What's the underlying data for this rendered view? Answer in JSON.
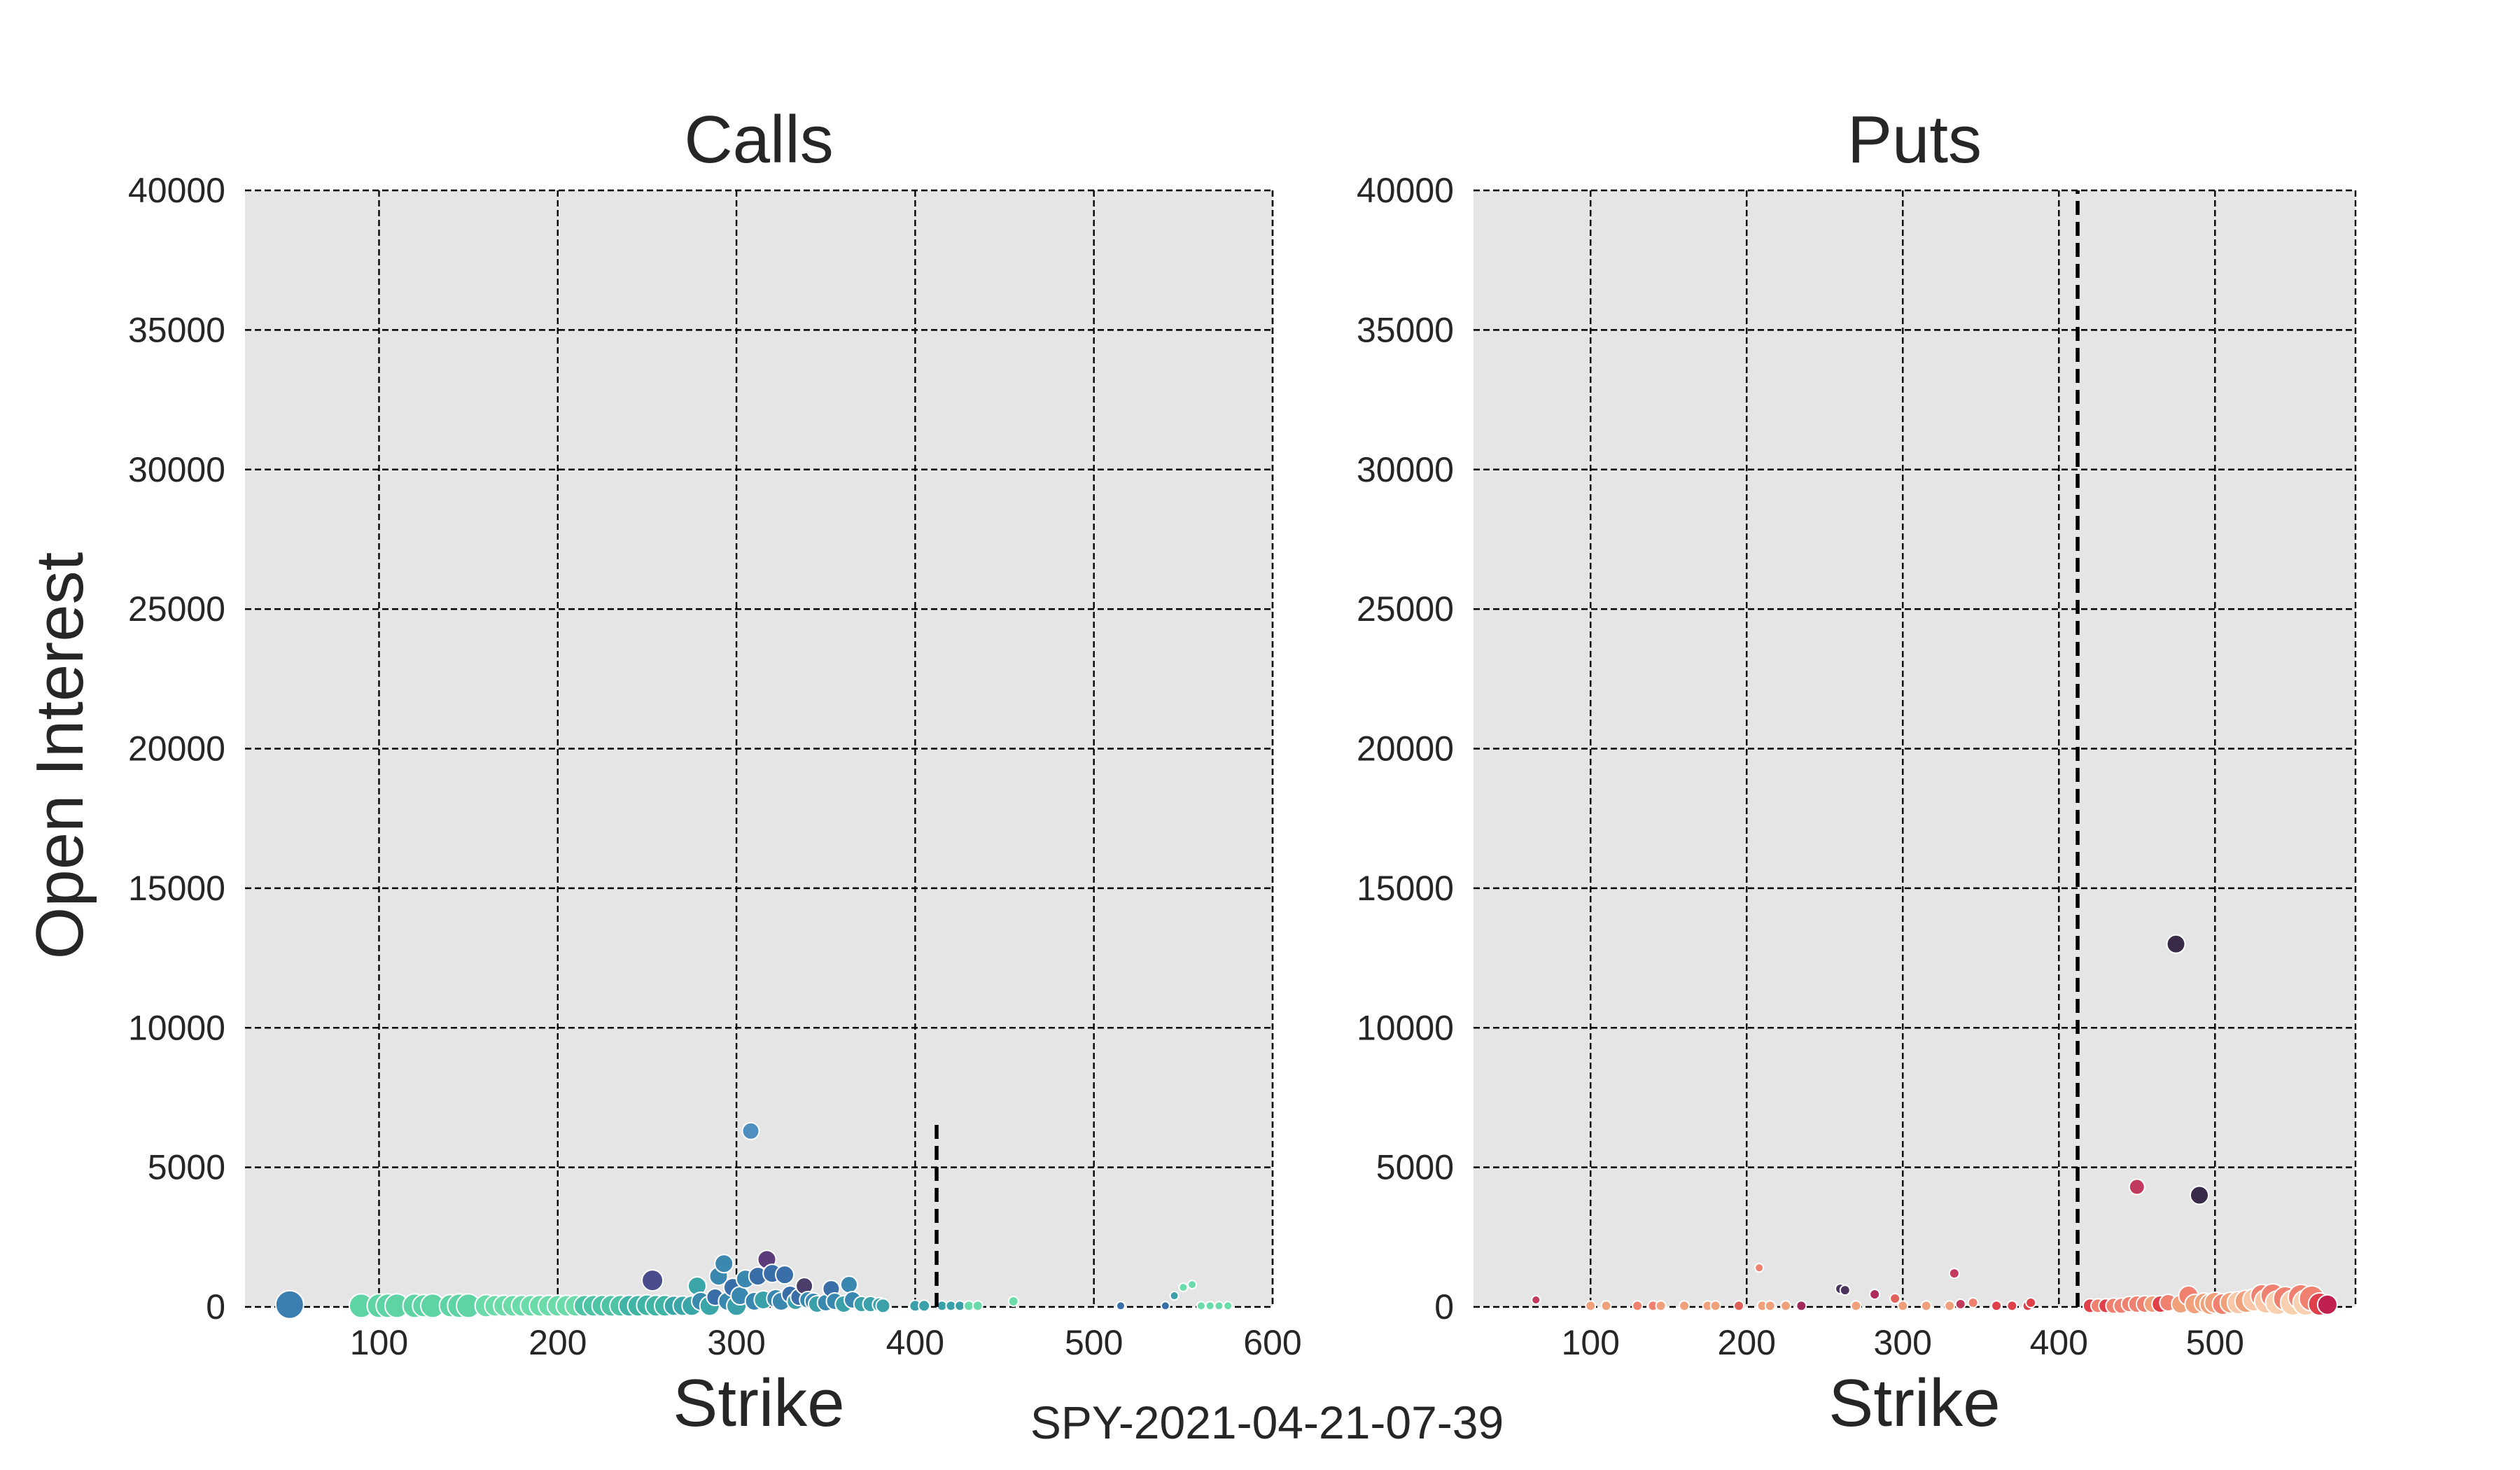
{
  "footer_label": "SPY-2021-04-21-07-39",
  "chart_data": [
    {
      "type": "scatter",
      "title": "Calls",
      "xlabel": "Strike",
      "ylabel": "Open Interest",
      "xlim": [
        25,
        600
      ],
      "ylim": [
        0,
        40000
      ],
      "xticks": [
        "100",
        "200",
        "300",
        "400",
        "500",
        "600"
      ],
      "yticks": [
        "0",
        "5000",
        "10000",
        "15000",
        "20000",
        "25000",
        "30000",
        "35000",
        "40000"
      ],
      "grid": true,
      "reference_line": {
        "x": 412,
        "y_top": 6700
      },
      "points": [
        {
          "x": 50,
          "y": 80,
          "s": 20,
          "c": "#3b7fb0"
        },
        {
          "x": 90,
          "y": 40,
          "s": 17,
          "c": "#5ed4a4"
        },
        {
          "x": 100,
          "y": 40,
          "s": 17,
          "c": "#5ed4a4"
        },
        {
          "x": 105,
          "y": 40,
          "s": 17,
          "c": "#5ed4a4"
        },
        {
          "x": 110,
          "y": 40,
          "s": 17,
          "c": "#5ed4a4"
        },
        {
          "x": 120,
          "y": 40,
          "s": 17,
          "c": "#5ed4a4"
        },
        {
          "x": 125,
          "y": 40,
          "s": 16,
          "c": "#5ed4a4"
        },
        {
          "x": 130,
          "y": 40,
          "s": 17,
          "c": "#5ed4a4"
        },
        {
          "x": 140,
          "y": 40,
          "s": 16,
          "c": "#5ed4a4"
        },
        {
          "x": 145,
          "y": 40,
          "s": 17,
          "c": "#5ed4a4"
        },
        {
          "x": 150,
          "y": 40,
          "s": 17,
          "c": "#5ed4a4"
        },
        {
          "x": 160,
          "y": 40,
          "s": 16,
          "c": "#6bdba9"
        },
        {
          "x": 165,
          "y": 40,
          "s": 15,
          "c": "#6bdba9"
        },
        {
          "x": 170,
          "y": 40,
          "s": 15,
          "c": "#6bdba9"
        },
        {
          "x": 175,
          "y": 40,
          "s": 15,
          "c": "#6bdba9"
        },
        {
          "x": 180,
          "y": 40,
          "s": 15,
          "c": "#6bdba9"
        },
        {
          "x": 185,
          "y": 40,
          "s": 15,
          "c": "#6bdba9"
        },
        {
          "x": 190,
          "y": 40,
          "s": 15,
          "c": "#6bdba9"
        },
        {
          "x": 195,
          "y": 40,
          "s": 15,
          "c": "#6bdba9"
        },
        {
          "x": 200,
          "y": 40,
          "s": 15,
          "c": "#6bdba9"
        },
        {
          "x": 205,
          "y": 40,
          "s": 15,
          "c": "#6bdba9"
        },
        {
          "x": 210,
          "y": 40,
          "s": 15,
          "c": "#6bdba9"
        },
        {
          "x": 215,
          "y": 40,
          "s": 15,
          "c": "#4fc3a6"
        },
        {
          "x": 220,
          "y": 40,
          "s": 15,
          "c": "#4fc3a6"
        },
        {
          "x": 225,
          "y": 40,
          "s": 15,
          "c": "#4fc3a6"
        },
        {
          "x": 230,
          "y": 40,
          "s": 15,
          "c": "#4fc3a6"
        },
        {
          "x": 235,
          "y": 40,
          "s": 15,
          "c": "#4fc3a6"
        },
        {
          "x": 240,
          "y": 40,
          "s": 15,
          "c": "#40b5a6"
        },
        {
          "x": 245,
          "y": 40,
          "s": 15,
          "c": "#40b5a6"
        },
        {
          "x": 250,
          "y": 60,
          "s": 15,
          "c": "#40b5a6"
        },
        {
          "x": 253,
          "y": 950,
          "s": 15,
          "c": "#4a4d8c"
        },
        {
          "x": 255,
          "y": 40,
          "s": 15,
          "c": "#40b5a6"
        },
        {
          "x": 260,
          "y": 40,
          "s": 15,
          "c": "#40b5a6"
        },
        {
          "x": 265,
          "y": 40,
          "s": 14,
          "c": "#3aa6a8"
        },
        {
          "x": 270,
          "y": 40,
          "s": 14,
          "c": "#3aa6a8"
        },
        {
          "x": 275,
          "y": 40,
          "s": 14,
          "c": "#3aa6a8"
        },
        {
          "x": 278,
          "y": 750,
          "s": 13,
          "c": "#3aa6a8"
        },
        {
          "x": 280,
          "y": 200,
          "s": 13,
          "c": "#3a8ab0"
        },
        {
          "x": 285,
          "y": 40,
          "s": 14,
          "c": "#3aa6a8"
        },
        {
          "x": 288,
          "y": 350,
          "s": 12,
          "c": "#3a6ea8"
        },
        {
          "x": 290,
          "y": 1100,
          "s": 13,
          "c": "#3a88b0"
        },
        {
          "x": 293,
          "y": 1550,
          "s": 13,
          "c": "#3a88b0"
        },
        {
          "x": 295,
          "y": 200,
          "s": 13,
          "c": "#3a88b0"
        },
        {
          "x": 298,
          "y": 700,
          "s": 13,
          "c": "#3a6ea8"
        },
        {
          "x": 300,
          "y": 40,
          "s": 14,
          "c": "#3aa0aa"
        },
        {
          "x": 302,
          "y": 400,
          "s": 13,
          "c": "#3a88b0"
        },
        {
          "x": 305,
          "y": 1000,
          "s": 13,
          "c": "#3a88b0"
        },
        {
          "x": 308,
          "y": 6300,
          "s": 12,
          "c": "#4e8fc0"
        },
        {
          "x": 310,
          "y": 200,
          "s": 13,
          "c": "#3a88b0"
        },
        {
          "x": 312,
          "y": 1100,
          "s": 13,
          "c": "#3a6ea8"
        },
        {
          "x": 315,
          "y": 250,
          "s": 13,
          "c": "#3aa0aa"
        },
        {
          "x": 317,
          "y": 1700,
          "s": 13,
          "c": "#5a3d7a"
        },
        {
          "x": 320,
          "y": 1200,
          "s": 13,
          "c": "#3a6ea8"
        },
        {
          "x": 322,
          "y": 300,
          "s": 13,
          "c": "#3a88b0"
        },
        {
          "x": 325,
          "y": 200,
          "s": 13,
          "c": "#3a88b0"
        },
        {
          "x": 327,
          "y": 1150,
          "s": 13,
          "c": "#3a6ea8"
        },
        {
          "x": 330,
          "y": 450,
          "s": 12,
          "c": "#3a6ea8"
        },
        {
          "x": 333,
          "y": 200,
          "s": 12,
          "c": "#3aa0aa"
        },
        {
          "x": 335,
          "y": 350,
          "s": 12,
          "c": "#3a6ea8"
        },
        {
          "x": 338,
          "y": 750,
          "s": 12,
          "c": "#4a3d6a"
        },
        {
          "x": 340,
          "y": 250,
          "s": 12,
          "c": "#3a88b0"
        },
        {
          "x": 343,
          "y": 200,
          "s": 12,
          "c": "#3a88b0"
        },
        {
          "x": 345,
          "y": 100,
          "s": 12,
          "c": "#3aa0aa"
        },
        {
          "x": 350,
          "y": 150,
          "s": 12,
          "c": "#3a88b0"
        },
        {
          "x": 353,
          "y": 650,
          "s": 12,
          "c": "#3a6ea8"
        },
        {
          "x": 355,
          "y": 200,
          "s": 12,
          "c": "#3a88b0"
        },
        {
          "x": 360,
          "y": 100,
          "s": 12,
          "c": "#3aa0aa"
        },
        {
          "x": 363,
          "y": 800,
          "s": 12,
          "c": "#3a88b0"
        },
        {
          "x": 365,
          "y": 250,
          "s": 12,
          "c": "#3a88b0"
        },
        {
          "x": 370,
          "y": 100,
          "s": 11,
          "c": "#3aa0aa"
        },
        {
          "x": 375,
          "y": 100,
          "s": 11,
          "c": "#3aa0aa"
        },
        {
          "x": 380,
          "y": 80,
          "s": 10,
          "c": "#3aa0aa"
        },
        {
          "x": 382,
          "y": 40,
          "s": 10,
          "c": "#3aa0aa"
        },
        {
          "x": 400,
          "y": 40,
          "s": 8,
          "c": "#3aa0aa"
        },
        {
          "x": 405,
          "y": 40,
          "s": 8,
          "c": "#3aa0aa"
        },
        {
          "x": 415,
          "y": 40,
          "s": 7,
          "c": "#3aa0aa"
        },
        {
          "x": 420,
          "y": 40,
          "s": 7,
          "c": "#3aa0aa"
        },
        {
          "x": 425,
          "y": 40,
          "s": 7,
          "c": "#3aa0aa"
        },
        {
          "x": 430,
          "y": 40,
          "s": 7,
          "c": "#6bdba9"
        },
        {
          "x": 435,
          "y": 40,
          "s": 7,
          "c": "#6bdba9"
        },
        {
          "x": 455,
          "y": 200,
          "s": 7,
          "c": "#6bdba9"
        },
        {
          "x": 515,
          "y": 40,
          "s": 6,
          "c": "#3a6ea8"
        },
        {
          "x": 540,
          "y": 40,
          "s": 6,
          "c": "#3a6ea8"
        },
        {
          "x": 545,
          "y": 400,
          "s": 6,
          "c": "#3aa0aa"
        },
        {
          "x": 550,
          "y": 700,
          "s": 6,
          "c": "#6bdba9"
        },
        {
          "x": 555,
          "y": 800,
          "s": 6,
          "c": "#6bdba9"
        },
        {
          "x": 560,
          "y": 40,
          "s": 6,
          "c": "#6bdba9"
        },
        {
          "x": 565,
          "y": 40,
          "s": 6,
          "c": "#6bdba9"
        },
        {
          "x": 570,
          "y": 40,
          "s": 6,
          "c": "#6bdba9"
        },
        {
          "x": 575,
          "y": 40,
          "s": 6,
          "c": "#6bdba9"
        }
      ]
    },
    {
      "type": "scatter",
      "title": "Puts",
      "xlabel": "Strike",
      "ylabel": "",
      "xlim": [
        25,
        590
      ],
      "ylim": [
        0,
        40000
      ],
      "xticks": [
        "100",
        "200",
        "300",
        "400",
        "500"
      ],
      "yticks": [
        "0",
        "5000",
        "10000",
        "15000",
        "20000",
        "25000",
        "30000",
        "35000",
        "40000"
      ],
      "grid": true,
      "reference_line": {
        "x": 412,
        "y_top": 40000
      },
      "points": [
        {
          "x": 65,
          "y": 250,
          "s": 6,
          "c": "#c23b5e"
        },
        {
          "x": 100,
          "y": 40,
          "s": 7,
          "c": "#f0a07a"
        },
        {
          "x": 110,
          "y": 40,
          "s": 7,
          "c": "#f0a07a"
        },
        {
          "x": 130,
          "y": 40,
          "s": 7,
          "c": "#f08070"
        },
        {
          "x": 140,
          "y": 40,
          "s": 7,
          "c": "#f08070"
        },
        {
          "x": 145,
          "y": 40,
          "s": 7,
          "c": "#f0a07a"
        },
        {
          "x": 160,
          "y": 40,
          "s": 7,
          "c": "#f0a07a"
        },
        {
          "x": 175,
          "y": 40,
          "s": 7,
          "c": "#f0a07a"
        },
        {
          "x": 180,
          "y": 40,
          "s": 7,
          "c": "#f0a07a"
        },
        {
          "x": 195,
          "y": 40,
          "s": 7,
          "c": "#e0605a"
        },
        {
          "x": 208,
          "y": 1400,
          "s": 6,
          "c": "#f08070"
        },
        {
          "x": 210,
          "y": 40,
          "s": 7,
          "c": "#f0a07a"
        },
        {
          "x": 215,
          "y": 40,
          "s": 7,
          "c": "#f0a07a"
        },
        {
          "x": 225,
          "y": 40,
          "s": 7,
          "c": "#f0a07a"
        },
        {
          "x": 235,
          "y": 40,
          "s": 7,
          "c": "#a02a5a"
        },
        {
          "x": 260,
          "y": 650,
          "s": 7,
          "c": "#4a3560"
        },
        {
          "x": 263,
          "y": 600,
          "s": 7,
          "c": "#4a3560"
        },
        {
          "x": 270,
          "y": 40,
          "s": 7,
          "c": "#f0a07a"
        },
        {
          "x": 282,
          "y": 450,
          "s": 7,
          "c": "#b02a5a"
        },
        {
          "x": 295,
          "y": 300,
          "s": 7,
          "c": "#e0605a"
        },
        {
          "x": 300,
          "y": 40,
          "s": 7,
          "c": "#f0a07a"
        },
        {
          "x": 315,
          "y": 40,
          "s": 7,
          "c": "#f0a07a"
        },
        {
          "x": 330,
          "y": 40,
          "s": 7,
          "c": "#f0a07a"
        },
        {
          "x": 333,
          "y": 1200,
          "s": 7,
          "c": "#c23b5e"
        },
        {
          "x": 337,
          "y": 100,
          "s": 7,
          "c": "#c23b5e"
        },
        {
          "x": 345,
          "y": 150,
          "s": 7,
          "c": "#f08070"
        },
        {
          "x": 360,
          "y": 40,
          "s": 7,
          "c": "#e0404a"
        },
        {
          "x": 370,
          "y": 40,
          "s": 7,
          "c": "#e0404a"
        },
        {
          "x": 380,
          "y": 40,
          "s": 7,
          "c": "#e0404a"
        },
        {
          "x": 382,
          "y": 150,
          "s": 7,
          "c": "#e0404a"
        },
        {
          "x": 420,
          "y": 40,
          "s": 10,
          "c": "#e0404a"
        },
        {
          "x": 425,
          "y": 40,
          "s": 10,
          "c": "#f08070"
        },
        {
          "x": 430,
          "y": 40,
          "s": 10,
          "c": "#e0404a"
        },
        {
          "x": 435,
          "y": 40,
          "s": 11,
          "c": "#f08070"
        },
        {
          "x": 440,
          "y": 40,
          "s": 11,
          "c": "#f08070"
        },
        {
          "x": 445,
          "y": 100,
          "s": 11,
          "c": "#f08070"
        },
        {
          "x": 450,
          "y": 4300,
          "s": 11,
          "c": "#c23b5e"
        },
        {
          "x": 450,
          "y": 100,
          "s": 12,
          "c": "#f08070"
        },
        {
          "x": 455,
          "y": 100,
          "s": 12,
          "c": "#f08070"
        },
        {
          "x": 460,
          "y": 100,
          "s": 12,
          "c": "#f0a07a"
        },
        {
          "x": 465,
          "y": 100,
          "s": 12,
          "c": "#e0404a"
        },
        {
          "x": 470,
          "y": 150,
          "s": 12,
          "c": "#f08070"
        },
        {
          "x": 475,
          "y": 13000,
          "s": 13,
          "c": "#3a2a4a"
        },
        {
          "x": 478,
          "y": 100,
          "s": 13,
          "c": "#f0a07a"
        },
        {
          "x": 483,
          "y": 400,
          "s": 14,
          "c": "#f08070"
        },
        {
          "x": 487,
          "y": 100,
          "s": 14,
          "c": "#f0a07a"
        },
        {
          "x": 490,
          "y": 4000,
          "s": 13,
          "c": "#3a2a4a"
        },
        {
          "x": 493,
          "y": 150,
          "s": 14,
          "c": "#f0a07a"
        },
        {
          "x": 497,
          "y": 100,
          "s": 15,
          "c": "#f0a07a"
        },
        {
          "x": 500,
          "y": 150,
          "s": 15,
          "c": "#f0a07a"
        },
        {
          "x": 505,
          "y": 100,
          "s": 15,
          "c": "#f08070"
        },
        {
          "x": 510,
          "y": 150,
          "s": 15,
          "c": "#f0a07a"
        },
        {
          "x": 515,
          "y": 150,
          "s": 16,
          "c": "#f8c8a8"
        },
        {
          "x": 520,
          "y": 200,
          "s": 16,
          "c": "#f0a07a"
        },
        {
          "x": 525,
          "y": 250,
          "s": 16,
          "c": "#f8c8a8"
        },
        {
          "x": 530,
          "y": 400,
          "s": 16,
          "c": "#f08070"
        },
        {
          "x": 533,
          "y": 200,
          "s": 17,
          "c": "#f8c8a8"
        },
        {
          "x": 537,
          "y": 400,
          "s": 17,
          "c": "#f08070"
        },
        {
          "x": 540,
          "y": 150,
          "s": 17,
          "c": "#f8d0b0"
        },
        {
          "x": 545,
          "y": 300,
          "s": 17,
          "c": "#f08070"
        },
        {
          "x": 550,
          "y": 150,
          "s": 18,
          "c": "#f8d0b0"
        },
        {
          "x": 555,
          "y": 350,
          "s": 18,
          "c": "#f08070"
        },
        {
          "x": 558,
          "y": 150,
          "s": 18,
          "c": "#f8d0b0"
        },
        {
          "x": 562,
          "y": 300,
          "s": 18,
          "c": "#f08070"
        },
        {
          "x": 567,
          "y": 100,
          "s": 16,
          "c": "#e0404a"
        },
        {
          "x": 572,
          "y": 80,
          "s": 14,
          "c": "#c02050"
        }
      ]
    }
  ]
}
